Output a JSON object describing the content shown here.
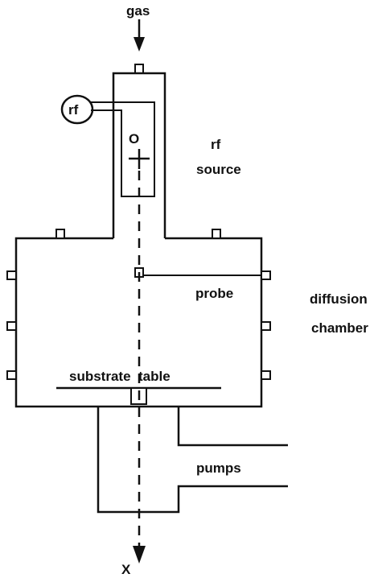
{
  "labels": {
    "gas": "gas",
    "rf_circle": "rf",
    "origin": "O",
    "rf_source_line1": "rf",
    "rf_source_line2": "source",
    "probe": "probe",
    "diffusion_line1": "diffusion",
    "diffusion_line2": "chamber",
    "substrate_table": "substrate  table",
    "pumps": "pumps",
    "axis": "X"
  }
}
